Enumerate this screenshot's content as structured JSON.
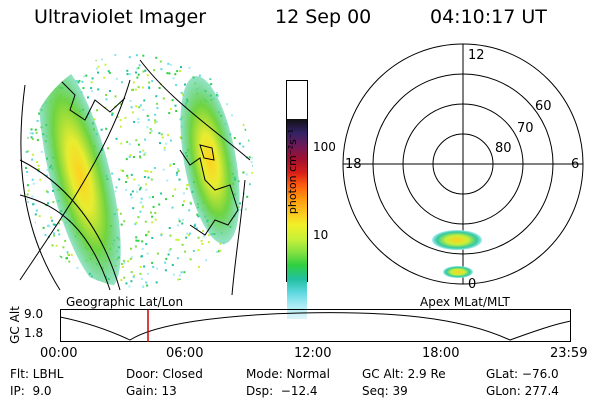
{
  "header": {
    "instrument": "Ultraviolet Imager",
    "date": "12 Sep 00",
    "time": "04:10:17 UT"
  },
  "colorbar": {
    "unit_label": "photon cm⁻²s⁻¹",
    "tick_labels": [
      "100",
      "10"
    ],
    "colors": [
      "#111111",
      "#332266",
      "#6a1a5a",
      "#a01030",
      "#d82018",
      "#ff5a10",
      "#ff9a10",
      "#ffc820",
      "#f0f028",
      "#c8f038",
      "#80e040",
      "#30d040",
      "#20c0a0",
      "#60d8e0",
      "#a8ecf4",
      "#e0f4f8"
    ]
  },
  "polar_plot": {
    "clock_labels": {
      "top": "12",
      "left": "18",
      "right": "6",
      "bottom": "0"
    },
    "lat_labels": [
      "60",
      "70",
      "80"
    ]
  },
  "panel_labels": {
    "left": "Geographic Lat/Lon",
    "right": "Apex MLat/MLT"
  },
  "timeline": {
    "ylabel": "GC Alt",
    "y_ticks": [
      "9.0",
      "1.8"
    ],
    "x_ticks": [
      "00:00",
      "06:00",
      "12:00",
      "18:00",
      "23:59"
    ],
    "current_time_color": "#cc0000"
  },
  "footer": {
    "flt": "Flt: LBHL",
    "ip": "IP:  9.0",
    "door": "Door: Closed",
    "gain": "Gain: 13",
    "mode": "Mode: Normal",
    "dsp": "Dsp:  −12.4",
    "gcalt": "GC Alt: 2.9 Re",
    "seq": "Seq: 39",
    "glat": "GLat: −76.0",
    "glon": "GLon: 277.4"
  }
}
